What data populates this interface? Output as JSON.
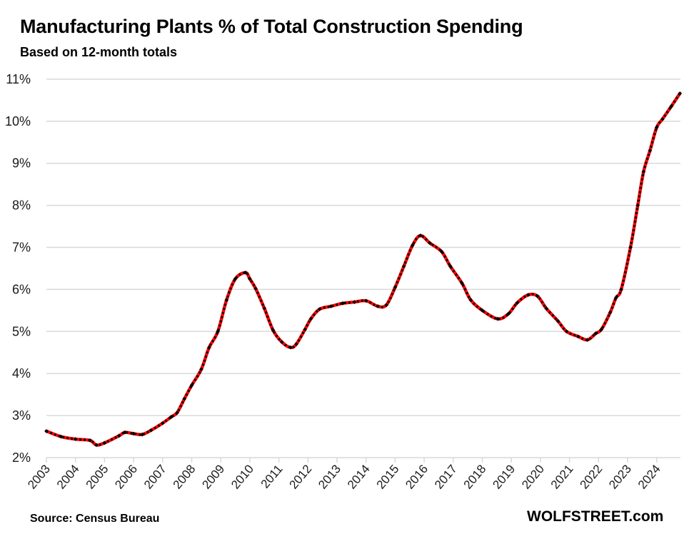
{
  "header": {
    "title": "Manufacturing Plants % of Total Construction Spending",
    "subtitle": "Based on 12-month totals"
  },
  "footer": {
    "source": "Source: Census Bureau",
    "brand": "WOLFSTREET.com"
  },
  "colors": {
    "line": "#ff0000",
    "marker": "#000000",
    "grid": "#d9d9d9",
    "text": "#000000"
  },
  "chart_data": {
    "type": "line",
    "title": "Manufacturing Plants % of Total Construction Spending",
    "subtitle": "Based on 12-month totals",
    "xlabel": "",
    "ylabel": "",
    "xlim": [
      2003,
      2024.8
    ],
    "ylim": [
      2,
      11
    ],
    "grid": "horizontal",
    "legend": "none",
    "y_ticks": [
      "2%",
      "3%",
      "4%",
      "5%",
      "6%",
      "7%",
      "8%",
      "9%",
      "10%",
      "11%"
    ],
    "y_tick_values": [
      2,
      3,
      4,
      5,
      6,
      7,
      8,
      9,
      10,
      11
    ],
    "x_ticks": [
      "2003",
      "2004",
      "2005",
      "2006",
      "2007",
      "2008",
      "2009",
      "2010",
      "2011",
      "2012",
      "2013",
      "2014",
      "2015",
      "2016",
      "2017",
      "2018",
      "2019",
      "2020",
      "2021",
      "2022",
      "2023",
      "2024"
    ],
    "x_tick_values": [
      2003,
      2004,
      2005,
      2006,
      2007,
      2008,
      2009,
      2010,
      2011,
      2012,
      2013,
      2014,
      2015,
      2016,
      2017,
      2018,
      2019,
      2020,
      2021,
      2022,
      2023,
      2024
    ],
    "series": [
      {
        "name": "Manufacturing % of total construction spending",
        "x": [
          2003.0,
          2003.5,
          2004.0,
          2004.5,
          2004.72,
          2005.0,
          2005.5,
          2005.7,
          2006.0,
          2006.3,
          2006.6,
          2007.0,
          2007.3,
          2007.5,
          2007.75,
          2008.0,
          2008.33,
          2008.6,
          2008.9,
          2009.2,
          2009.5,
          2009.85,
          2010.0,
          2010.2,
          2010.5,
          2010.8,
          2011.1,
          2011.4,
          2011.6,
          2011.9,
          2012.1,
          2012.4,
          2012.8,
          2013.2,
          2013.6,
          2014.0,
          2014.4,
          2014.7,
          2015.0,
          2015.3,
          2015.6,
          2015.87,
          2016.2,
          2016.6,
          2016.9,
          2017.3,
          2017.6,
          2018.0,
          2018.53,
          2018.9,
          2019.2,
          2019.58,
          2019.9,
          2020.2,
          2020.6,
          2020.9,
          2021.3,
          2021.62,
          2021.9,
          2022.1,
          2022.4,
          2022.6,
          2022.78,
          2023.1,
          2023.35,
          2023.55,
          2023.77,
          2024.0,
          2024.2,
          2024.5,
          2024.8
        ],
        "values": [
          2.63,
          2.5,
          2.44,
          2.41,
          2.3,
          2.35,
          2.52,
          2.6,
          2.57,
          2.55,
          2.65,
          2.82,
          2.97,
          3.07,
          3.4,
          3.72,
          4.1,
          4.62,
          5.0,
          5.75,
          6.25,
          6.4,
          6.25,
          6.02,
          5.55,
          5.03,
          4.75,
          4.62,
          4.7,
          5.05,
          5.3,
          5.53,
          5.6,
          5.67,
          5.7,
          5.73,
          5.6,
          5.63,
          6.05,
          6.55,
          7.05,
          7.28,
          7.1,
          6.9,
          6.55,
          6.15,
          5.75,
          5.5,
          5.3,
          5.42,
          5.68,
          5.87,
          5.84,
          5.55,
          5.25,
          5.0,
          4.88,
          4.8,
          4.95,
          5.05,
          5.45,
          5.8,
          6.0,
          7.0,
          8.0,
          8.8,
          9.3,
          9.85,
          10.05,
          10.35,
          10.66
        ]
      }
    ],
    "annotations": [
      "Source: Census Bureau",
      "WOLFSTREET.com"
    ]
  }
}
